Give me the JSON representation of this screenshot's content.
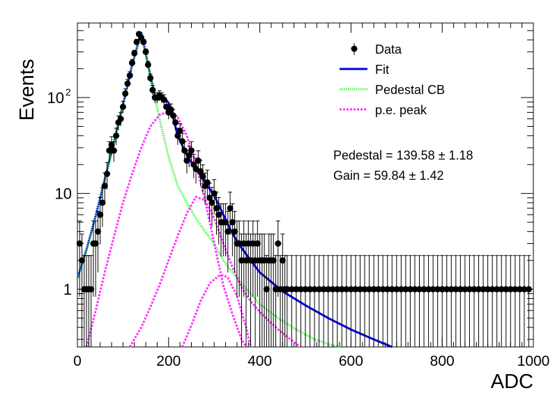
{
  "chart_data": {
    "type": "scatter",
    "xlabel": "ADC",
    "ylabel": "Events",
    "xlim": [
      0,
      1000
    ],
    "ylim": [
      0.25,
      600
    ],
    "yscale": "log",
    "x_ticks": [
      0,
      200,
      400,
      600,
      800,
      1000
    ],
    "y_ticks": [
      {
        "value": 1,
        "label": "1"
      },
      {
        "value": 10,
        "label": "10"
      },
      {
        "value": 100,
        "label": "10",
        "sup": "2"
      }
    ],
    "grid": false,
    "legend": {
      "placement": "top-right",
      "entries": [
        {
          "label": "Data",
          "kind": "marker",
          "color": "#000000"
        },
        {
          "label": "Fit",
          "kind": "line",
          "color": "#0000dd"
        },
        {
          "label": "Pedestal CB",
          "kind": "dotted",
          "color": "#33ff33"
        },
        {
          "label": "p.e. peak",
          "kind": "dashed",
          "color": "#ff33ff"
        }
      ]
    },
    "annotations": [
      {
        "text": "Pedestal = 139.58 ± 1.18"
      },
      {
        "text": "Gain = 59.84 ± 1.42"
      }
    ],
    "fit_params": {
      "pedestal": 139.58,
      "pedestal_err": 1.18,
      "gain": 59.84,
      "gain_err": 1.42
    },
    "series": [
      {
        "name": "Data",
        "x": [
          5,
          10,
          15,
          20,
          25,
          30,
          35,
          40,
          45,
          50,
          55,
          60,
          65,
          70,
          75,
          80,
          85,
          90,
          95,
          100,
          105,
          110,
          115,
          120,
          125,
          130,
          135,
          140,
          145,
          150,
          155,
          160,
          165,
          170,
          175,
          180,
          185,
          190,
          195,
          200,
          205,
          210,
          215,
          220,
          225,
          230,
          235,
          240,
          245,
          250,
          255,
          260,
          265,
          270,
          275,
          280,
          285,
          290,
          295,
          300,
          305,
          310,
          315,
          320,
          325,
          330,
          335,
          340,
          345,
          350,
          355,
          360,
          365,
          370,
          375,
          380,
          385,
          390,
          395,
          400,
          405,
          410,
          415,
          420,
          425,
          430,
          435,
          440,
          445,
          450,
          455,
          460,
          470,
          480,
          490,
          500,
          510,
          520,
          530,
          540,
          550,
          560,
          570,
          580,
          590,
          600,
          610,
          620,
          630,
          640,
          650,
          660,
          670,
          680,
          690,
          700,
          710,
          720,
          730,
          740,
          750,
          760,
          770,
          780,
          790,
          800,
          810,
          820,
          830,
          840,
          850,
          860,
          870,
          880,
          890,
          900,
          910,
          920,
          930,
          940,
          950,
          960,
          970,
          980,
          990
        ],
        "y": [
          3,
          2,
          1,
          1,
          1,
          1,
          3,
          3,
          4,
          6,
          8,
          12,
          16,
          28,
          32,
          28,
          40,
          55,
          60,
          80,
          110,
          140,
          170,
          230,
          290,
          380,
          460,
          420,
          380,
          300,
          220,
          160,
          120,
          100,
          100,
          105,
          100,
          95,
          80,
          70,
          75,
          65,
          55,
          40,
          45,
          35,
          28,
          22,
          25,
          28,
          20,
          18,
          22,
          17,
          15,
          12,
          13,
          9,
          8,
          10,
          7,
          6,
          5,
          5,
          5,
          4,
          7,
          5,
          4,
          3,
          3,
          2,
          3,
          2,
          3,
          2,
          3,
          2,
          3,
          2,
          2,
          2,
          1,
          2,
          2,
          2,
          1,
          3,
          1,
          2,
          1,
          1,
          1,
          1,
          1,
          1,
          1,
          1,
          1,
          1,
          1,
          1,
          1,
          1,
          1,
          1,
          1,
          1,
          1,
          1,
          1,
          1,
          1,
          1,
          1,
          1,
          1,
          1,
          1,
          1,
          1,
          1,
          1,
          1,
          1,
          1,
          1,
          1,
          1,
          1,
          1,
          1,
          1,
          1,
          1,
          1,
          1,
          1,
          1,
          1,
          1,
          1,
          1,
          1,
          1
        ]
      },
      {
        "name": "Fit",
        "style": "solid",
        "color": "#0000dd",
        "x": [
          0,
          20,
          40,
          60,
          80,
          100,
          120,
          140,
          160,
          170,
          180,
          190,
          200,
          210,
          220,
          240,
          260,
          280,
          300,
          320,
          340,
          360,
          380,
          400,
          450,
          500,
          550,
          600,
          650,
          690
        ],
        "y": [
          1.3,
          2.6,
          5.8,
          14,
          34,
          85,
          220,
          480,
          170,
          105,
          104,
          100,
          88,
          62,
          40,
          25,
          18,
          13,
          9.5,
          6,
          3.8,
          2.7,
          2.0,
          1.5,
          0.95,
          0.68,
          0.5,
          0.38,
          0.3,
          0.25
        ]
      },
      {
        "name": "Pedestal CB",
        "style": "dotted",
        "color": "#33ff33",
        "x": [
          0,
          20,
          40,
          60,
          80,
          100,
          120,
          140,
          160,
          180,
          200,
          220,
          240,
          260,
          280,
          300,
          320,
          340,
          360,
          380,
          400,
          440,
          480,
          520,
          560,
          580
        ],
        "y": [
          1.3,
          2.6,
          5.8,
          14,
          34,
          85,
          220,
          480,
          170,
          60,
          24,
          12,
          8,
          5.5,
          4,
          3,
          2,
          1.5,
          1.15,
          0.9,
          0.7,
          0.5,
          0.38,
          0.3,
          0.26,
          0.25
        ]
      },
      {
        "name": "p.e. peak 1",
        "style": "dashed",
        "color": "#ff33ff",
        "x": [
          20,
          40,
          60,
          80,
          100,
          120,
          140,
          160,
          180,
          200,
          220,
          240,
          260,
          280,
          300,
          320,
          340,
          360,
          370
        ],
        "y": [
          0.25,
          0.6,
          1.5,
          3.5,
          8,
          16,
          30,
          50,
          66,
          71,
          62,
          40,
          20,
          8.5,
          3,
          1.1,
          0.55,
          0.3,
          0.25
        ]
      },
      {
        "name": "p.e. peak 2",
        "style": "dashed",
        "color": "#ff33ff",
        "x": [
          115,
          140,
          160,
          180,
          200,
          220,
          240,
          260,
          280,
          300,
          320,
          340,
          360,
          380,
          400,
          420,
          440,
          460,
          480,
          490
        ],
        "y": [
          0.25,
          0.4,
          0.65,
          1.1,
          2.0,
          3.6,
          6.2,
          9.2,
          8.5,
          5.5,
          3.0,
          1.7,
          1.05,
          0.75,
          0.58,
          0.47,
          0.38,
          0.32,
          0.27,
          0.25
        ]
      },
      {
        "name": "p.e. peak 3",
        "style": "dashed",
        "color": "#ff33ff",
        "x": [
          230,
          250,
          270,
          290,
          310,
          320,
          330,
          350,
          370,
          380
        ],
        "y": [
          0.25,
          0.42,
          0.75,
          1.15,
          1.38,
          1.4,
          1.32,
          0.85,
          0.4,
          0.25
        ]
      }
    ]
  }
}
